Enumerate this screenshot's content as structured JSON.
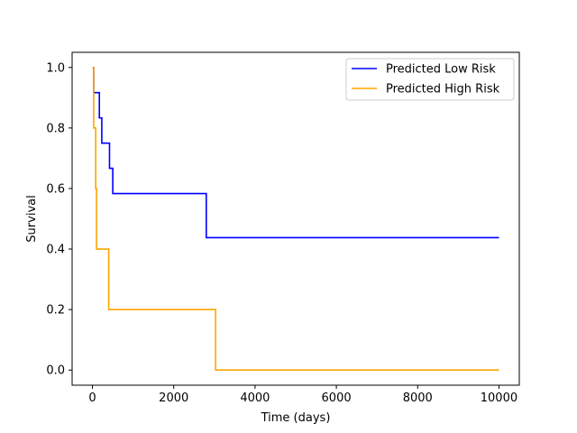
{
  "chart_data": {
    "type": "line",
    "step": "post",
    "title": "",
    "xlabel": "Time (days)",
    "ylabel": "Survival",
    "xlim": [
      -500,
      10500
    ],
    "ylim": [
      -0.05,
      1.05
    ],
    "xticks": [
      0,
      2000,
      4000,
      6000,
      8000,
      10000
    ],
    "xtick_labels": [
      "0",
      "2000",
      "4000",
      "6000",
      "8000",
      "10000"
    ],
    "yticks": [
      0.0,
      0.2,
      0.4,
      0.6,
      0.8,
      1.0
    ],
    "ytick_labels": [
      "0.0",
      "0.2",
      "0.4",
      "0.6",
      "0.8",
      "1.0"
    ],
    "grid": false,
    "legend_position": "top-right",
    "series": [
      {
        "name": "Predicted Low Risk",
        "color": "#0000ff",
        "x": [
          0,
          30,
          170,
          230,
          420,
          500,
          2800,
          10000
        ],
        "y": [
          1.0,
          0.9167,
          0.8333,
          0.75,
          0.6667,
          0.5833,
          0.4375,
          0.4375
        ]
      },
      {
        "name": "Predicted High Risk",
        "color": "#ffa500",
        "x": [
          0,
          30,
          80,
          100,
          400,
          3030,
          10000
        ],
        "y": [
          1.0,
          0.8,
          0.6,
          0.4,
          0.2,
          0.0,
          0.0
        ]
      }
    ]
  }
}
